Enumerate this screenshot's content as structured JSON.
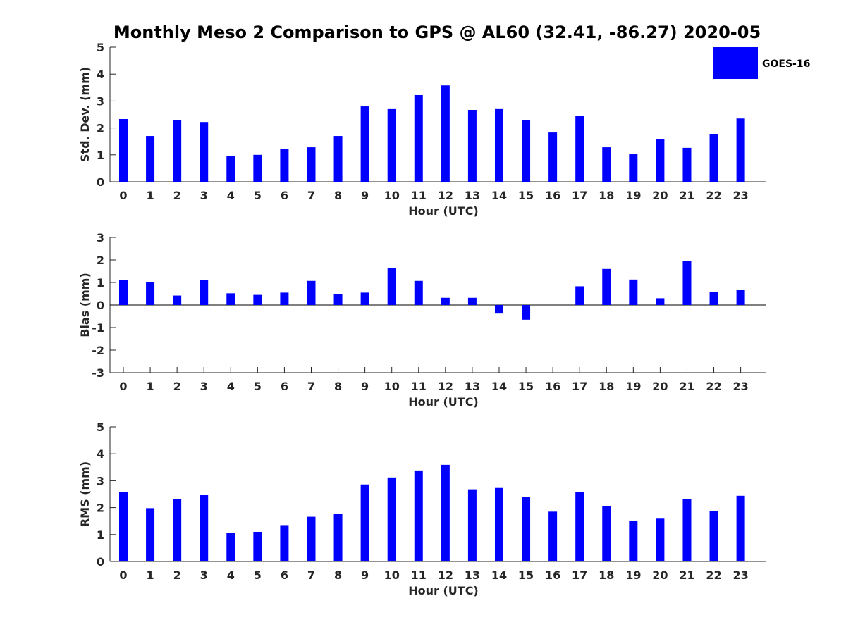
{
  "title": "Monthly Meso 2 Comparison to GPS @ AL60 (32.41, -86.27) 2020-05",
  "colors": {
    "bar": "#0000ff",
    "axis": "#262626",
    "background": "#ffffff"
  },
  "legend": {
    "label": "GOES-16",
    "position": "top-right"
  },
  "chart_data": [
    {
      "type": "bar",
      "title": "Monthly Meso 2 Comparison to GPS @ AL60 (32.41, -86.27) 2020-05",
      "xlabel": "Hour (UTC)",
      "ylabel": "Std. Dev. (mm)",
      "categories": [
        "0",
        "1",
        "2",
        "3",
        "4",
        "5",
        "6",
        "7",
        "8",
        "9",
        "10",
        "11",
        "12",
        "13",
        "14",
        "15",
        "16",
        "17",
        "18",
        "19",
        "20",
        "21",
        "22",
        "23"
      ],
      "series": [
        {
          "name": "GOES-16",
          "values": [
            2.33,
            1.7,
            2.3,
            2.22,
            0.95,
            1.0,
            1.23,
            1.28,
            1.7,
            2.8,
            2.7,
            3.22,
            3.58,
            2.67,
            2.7,
            2.3,
            1.83,
            2.45,
            1.28,
            1.02,
            1.57,
            1.26,
            1.78,
            2.35
          ]
        }
      ],
      "ylim": [
        0,
        5
      ],
      "yticks": [
        "0",
        "1",
        "2",
        "3",
        "4",
        "5"
      ],
      "zero_line": false
    },
    {
      "type": "bar",
      "xlabel": "Hour (UTC)",
      "ylabel": "Bias (mm)",
      "categories": [
        "0",
        "1",
        "2",
        "3",
        "4",
        "5",
        "6",
        "7",
        "8",
        "9",
        "10",
        "11",
        "12",
        "13",
        "14",
        "15",
        "16",
        "17",
        "18",
        "19",
        "20",
        "21",
        "22",
        "23"
      ],
      "series": [
        {
          "name": "GOES-16",
          "values": [
            1.1,
            1.02,
            0.42,
            1.1,
            0.52,
            0.45,
            0.55,
            1.07,
            0.48,
            0.55,
            1.63,
            1.07,
            0.32,
            0.32,
            -0.38,
            -0.65,
            0.0,
            0.83,
            1.6,
            1.13,
            0.3,
            1.95,
            0.58,
            0.67
          ]
        }
      ],
      "ylim": [
        -3,
        3
      ],
      "yticks": [
        "-3",
        "-2",
        "-1",
        "0",
        "1",
        "2",
        "3"
      ],
      "zero_line": true
    },
    {
      "type": "bar",
      "xlabel": "Hour (UTC)",
      "ylabel": "RMS (mm)",
      "categories": [
        "0",
        "1",
        "2",
        "3",
        "4",
        "5",
        "6",
        "7",
        "8",
        "9",
        "10",
        "11",
        "12",
        "13",
        "14",
        "15",
        "16",
        "17",
        "18",
        "19",
        "20",
        "21",
        "22",
        "23"
      ],
      "series": [
        {
          "name": "GOES-16",
          "values": [
            2.58,
            1.98,
            2.33,
            2.47,
            1.06,
            1.1,
            1.35,
            1.66,
            1.77,
            2.86,
            3.12,
            3.38,
            3.59,
            2.68,
            2.73,
            2.4,
            1.85,
            2.58,
            2.06,
            1.51,
            1.59,
            2.32,
            1.88,
            2.44
          ]
        }
      ],
      "ylim": [
        0,
        5
      ],
      "yticks": [
        "0",
        "1",
        "2",
        "3",
        "4",
        "5"
      ],
      "zero_line": false
    }
  ]
}
